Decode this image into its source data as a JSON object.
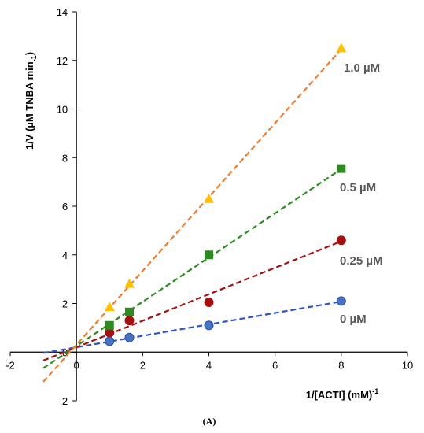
{
  "chart_data": {
    "type": "scatter",
    "caption": "(A)",
    "xlabel": "1/[ACTI]  (mM)",
    "xlabel_sup": "-1",
    "ylabel": "1/V (µM TNBA min",
    "ylabel_sub": "-1",
    "ylabel_close": ")",
    "xlim": [
      -2,
      10
    ],
    "ylim": [
      -2,
      14
    ],
    "x_ticks": [
      -2,
      0,
      2,
      4,
      6,
      8,
      10
    ],
    "y_ticks": [
      -2,
      0,
      2,
      4,
      6,
      8,
      10,
      12,
      14
    ],
    "grid": false,
    "series": [
      {
        "name": "0 µM",
        "marker": "circle",
        "color": "#4472C4",
        "line_color": "#2E55C8",
        "x": [
          1.0,
          1.6,
          4.0,
          8.0
        ],
        "y": [
          0.45,
          0.6,
          1.1,
          2.1
        ],
        "fit": {
          "slope": 0.235,
          "intercept": 0.2,
          "x_start": -1.0,
          "x_end": 8.0
        }
      },
      {
        "name": "0.25 µM",
        "marker": "circle",
        "color": "#A50F0F",
        "line_color": "#A50F0F",
        "x": [
          1.0,
          1.6,
          4.0,
          8.0
        ],
        "y": [
          0.8,
          1.3,
          2.05,
          4.6
        ],
        "fit": {
          "slope": 0.545,
          "intercept": 0.2,
          "x_start": -1.0,
          "x_end": 8.0
        }
      },
      {
        "name": "0.5 µM",
        "marker": "square",
        "color": "#2E8B22",
        "line_color": "#2E8B22",
        "x": [
          1.0,
          1.6,
          4.0,
          8.0
        ],
        "y": [
          1.1,
          1.65,
          4.0,
          7.55
        ],
        "fit": {
          "slope": 0.91,
          "intercept": 0.25,
          "x_start": -1.0,
          "x_end": 8.0
        }
      },
      {
        "name": "1.0 µM",
        "marker": "triangle",
        "color": "#FFC000",
        "line_color": "#ED7D31",
        "x": [
          1.0,
          1.6,
          4.0,
          8.0
        ],
        "y": [
          1.85,
          2.8,
          6.3,
          12.5
        ],
        "fit": {
          "slope": 1.52,
          "intercept": 0.3,
          "x_start": -1.0,
          "x_end": 8.0
        }
      }
    ]
  }
}
